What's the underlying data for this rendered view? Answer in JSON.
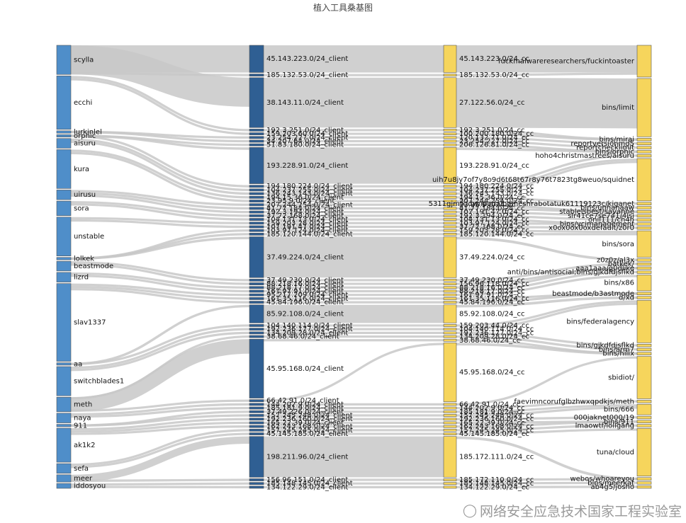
{
  "title": "植入工具桑基图",
  "watermark": {
    "text": "网络安全应急技术国家工程实验室",
    "icon": "wechat-icon"
  },
  "colors": {
    "loader": "#4f8ec9",
    "client": "#2f5f93",
    "cc": "#f6d55c",
    "bin": "#f6d55c",
    "link": "#c8c8c8"
  },
  "chart_data": {
    "type": "sankey",
    "columns": [
      {
        "name": "",
        "nodes": [
          "scylla",
          "ecchi",
          "lurkinlel",
          "orphic",
          "aisuru",
          "kura",
          "uirusu",
          "sora",
          "unstable",
          "lolkek",
          "beastmode",
          "lizrd",
          "slav1337",
          "aa",
          "switchblades1",
          "meth",
          "naya",
          "911",
          "ak1k2",
          "sefa",
          "meer",
          "iddosyou"
        ]
      },
      {
        "name": "",
        "nodes": [
          "45.143.223.0/24_client",
          "185.132.53.0/24_client",
          "38.143.11.0/24_client",
          "192.3.251.0/24_client",
          "159.203.60.0/24_client",
          "23.254.227.0/24_client",
          "34.207.64.0/24_client",
          "51.83.180.0/24_client",
          "193.228.91.0/24_client",
          "194.180.224.0/24_client",
          "104.237.255.0/24_client",
          "136.243.143.0/24_client",
          "194.15.36.0/24_client",
          "23.95.9.0/24_client",
          "207.244.254.0/24_client",
          "41.77.184.0/24_client",
          "192.3.194.0/24_client",
          "37.72.168.0/24_client",
          "104.131.13.0/24_client",
          "159.203.28.0/24_client",
          "107.191.47.0/24_client",
          "103.97.124.0/24_client",
          "185.120.144.0/24_client",
          "37.49.224.0/24_client",
          "37.49.230.0/24_client",
          "88.218.16.0/24_client",
          "88.218.17.0/24_client",
          "161.97.91.0/24_client",
          "95.217.209.0/24_client",
          "161.35.116.0/24_client",
          "45.84.196.0/24_client",
          "85.92.108.0/24_client",
          "104.140.114.0/24_client",
          "192.236.177.0/24_client",
          "134.209.28.0/24_client",
          "38.68.46.0/24_client",
          "45.95.168.0/24_client",
          "66.42.91.0/24_client",
          "144.202.9.0/24_client",
          "185.181.9.0/24_client",
          "37.49.226.0/24_client",
          "157.245.248.0/24_client",
          "192.236.160.0/24_client",
          "165.22.39.0/24_client",
          "162.243.168.0/24_client",
          "157.245.245.0/24_client",
          "45.145.185.0/24_client",
          "198.211.96.0/24_client",
          "156.96.151.0/24_client",
          "185.148.145.0/24_client",
          "134.122.29.0/24_client"
        ]
      },
      {
        "name": "",
        "nodes": [
          "45.143.223.0/24_cc",
          "185.132.53.0/24_cc",
          "27.122.56.0/24_cc",
          "192.3.251.0/24_cc",
          "100.200.180.0/24_cc",
          "120.132.71.0/24_cc",
          "23.254.227.0/24_cc",
          "206.126.81.0/24_cc",
          "193.228.91.0/24_cc",
          "194.180.224.0/24_cc",
          "104.237.255.0/24_cc",
          "136.243.143.0/24_cc",
          "194.15.36.0/24_cc",
          "207.244.254.0/24_cc",
          "23.95.9.0/24_cc",
          "41.77.184.0/24_cc",
          "107.191.47.0/24_cc",
          "192.3.194.0/24_cc",
          "104.131.13.0/24_cc",
          "103.97.124.0/24_cc",
          "37.72.168.0/24_cc",
          "159.203.28.0/24_cc",
          "185.120.144.0/24_cc",
          "37.49.224.0/24_cc",
          "37.49.230.0/24_cc",
          "156.96.118.0/24_cc",
          "88.218.16.0/24_cc",
          "88.218.17.0/24_cc",
          "161.97.91.0/24_cc",
          "161.35.116.0/24_cc",
          "45.84.196.0/24_cc",
          "85.92.108.0/24_cc",
          "159.203.44.0/24_cc",
          "104.140.114.0/24_cc",
          "192.236.177.0/24_cc",
          "134.209.28.0/24_cc",
          "38.68.46.0/24_cc",
          "45.95.168.0/24_cc",
          "66.42.91.0/24_cc",
          "144.202.9.0/24_cc",
          "185.181.9.0/24_cc",
          "157.245.248.0/24_cc",
          "192.236.160.0/24_cc",
          "165.22.39.0/24_cc",
          "162.243.168.0/24_cc",
          "157.245.245.0/24_cc",
          "45.145.185.0/24_cc",
          "185.172.111.0/24_cc",
          "185.172.110.0/24_cc",
          "185.148.145.0/24_cc",
          "134.122.29.0/24_cc"
        ]
      },
      {
        "name": "",
        "nodes": [
          "fuckmalwareresearchers/fuckintoaster",
          "bins/limit",
          "bins/mirai",
          "reportversionmd5",
          "reportchecklimit",
          "bins/orphic",
          "hoho4christmastrees/aisuru",
          "uih7u8jy7of7y8o9d6t68t67r8y76t7823tg8weuo/squidnet",
          "5311gjmlkldwnpodalbgmeshrabotatuk61119123c/kiganet",
          "bins/unhanaaw",
          "stableisbest/savanne",
          "slr41ce7se741/4lsi",
          "onii111/ch4n",
          "bins/vcimanagement",
          "x0ox0ox0oxdefault/z0r0",
          "bins/sora",
          "z0z0z/al3x",
          "batkek/",
          "aaa1aaa/g0dlike",
          "anti/bins/antisocial;bins/gjkdfdjsflkd",
          "bins/x86",
          "beastmode/b3astmode",
          "d/xd",
          "bins/federalagency",
          "bins/gjkdfdjsflkd",
          "bins/arm7",
          "bins/hilix",
          "sbidiot/",
          "faevimncorufglbzhwxqpdkjs/meth",
          "bins/666",
          "000jaknet000/19",
          "bins/911",
          "lmaowtf/loligang",
          "tuna/cloud",
          "webos/whoareyou",
          "bins/meerkat",
          "ab4g5/josho"
        ]
      }
    ],
    "node_values": {
      "scylla": 6,
      "ecchi": 11,
      "lurkinlel": 0.5,
      "orphic": 0.5,
      "aisuru": 2,
      "kura": 8,
      "uirusu": 2,
      "sora": 3,
      "unstable": 8,
      "lolkek": 0.5,
      "beastmode": 2,
      "lizrd": 2,
      "slav1337": 16,
      "aa": 0.5,
      "switchblades1": 6,
      "meth": 3,
      "naya": 2,
      "911": 0.5,
      "ak1k2": 7,
      "sefa": 2,
      "meer": 1.5,
      "iddosyou": 1,
      "45.143.223.0/24_client": 6,
      "38.143.11.0/24_client": 11,
      "193.228.91.0/24_client": 8,
      "37.49.224.0/24_client": 9,
      "85.92.108.0/24_client": 4,
      "45.95.168.0/24_client": 13,
      "198.211.96.0/24_client": 9,
      "45.143.223.0/24_cc": 6,
      "27.122.56.0/24_cc": 11,
      "193.228.91.0/24_cc": 8,
      "37.49.224.0/24_cc": 9,
      "85.92.108.0/24_cc": 4,
      "45.95.168.0/24_cc": 13,
      "185.172.111.0/24_cc": 9,
      "fuckmalwareresearchers/fuckintoaster": 6,
      "bins/limit": 11,
      "uih7u8jy7of7y8o9d6t68t67r8y76t7823tg8weuo/squidnet": 8,
      "bins/sora": 5,
      "bins/x86": 3,
      "bins/federalagency": 8,
      "sbidiot/": 8,
      "bins/666": 2,
      "tuna/cloud": 9
    },
    "legend": "none"
  }
}
